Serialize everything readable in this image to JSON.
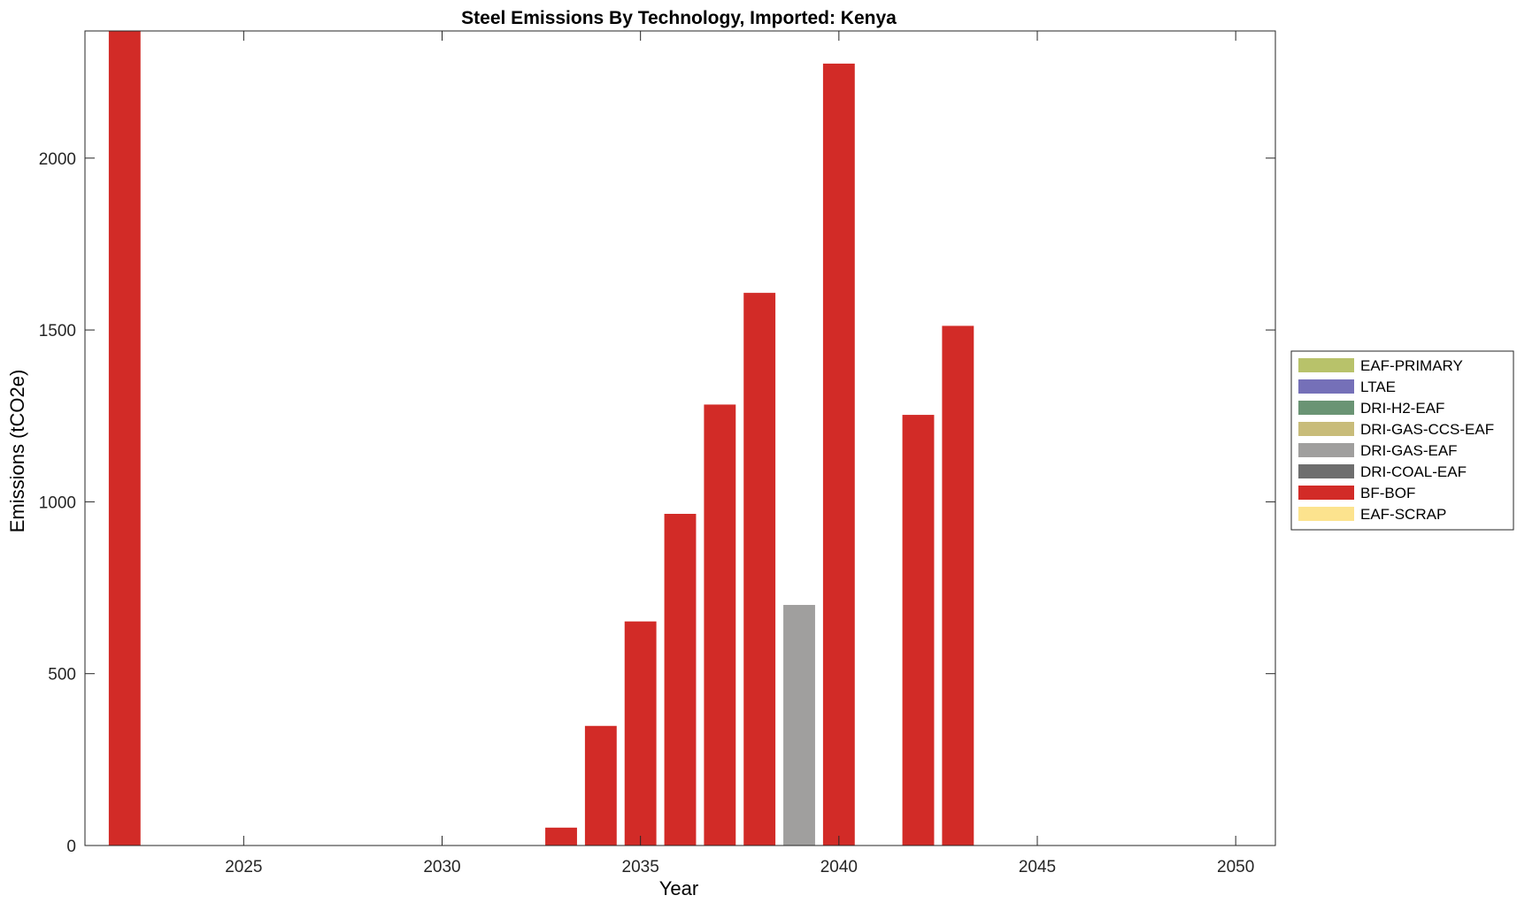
{
  "chart_data": {
    "type": "bar",
    "stacked": true,
    "title": "Steel Emissions By Technology, Imported: Kenya",
    "xlabel": "Year",
    "ylabel": "Emissions (tCO2e)",
    "xlim": [
      2021,
      2051
    ],
    "ylim": [
      0,
      2370
    ],
    "xticks": [
      2025,
      2030,
      2035,
      2040,
      2045,
      2050
    ],
    "yticks": [
      0,
      500,
      1000,
      1500,
      2000
    ],
    "grid": false,
    "legend_position": "right",
    "x": [
      2022,
      2023,
      2024,
      2025,
      2026,
      2027,
      2028,
      2029,
      2030,
      2031,
      2032,
      2033,
      2034,
      2035,
      2036,
      2037,
      2038,
      2039,
      2040,
      2041,
      2042,
      2043,
      2044,
      2045,
      2046,
      2047,
      2048,
      2049,
      2050
    ],
    "series": [
      {
        "name": "EAF-PRIMARY",
        "color": "#b8c26a",
        "values": [
          0,
          0,
          0,
          0,
          0,
          0,
          0,
          0,
          0,
          0,
          0,
          0,
          0,
          0,
          0,
          0,
          0,
          0,
          0,
          0,
          0,
          0,
          0,
          0,
          0,
          0,
          0,
          0,
          0
        ]
      },
      {
        "name": "LTAE",
        "color": "#7570b8",
        "values": [
          0,
          0,
          0,
          0,
          0,
          0,
          0,
          0,
          0,
          0,
          0,
          0,
          0,
          0,
          0,
          0,
          0,
          0,
          0,
          0,
          0,
          0,
          0,
          0,
          0,
          0,
          0,
          0,
          0
        ]
      },
      {
        "name": "DRI-H2-EAF",
        "color": "#6a9474",
        "values": [
          0,
          0,
          0,
          0,
          0,
          0,
          0,
          0,
          0,
          0,
          0,
          0,
          0,
          0,
          0,
          0,
          0,
          0,
          0,
          0,
          0,
          0,
          0,
          0,
          0,
          0,
          0,
          0,
          0
        ]
      },
      {
        "name": "DRI-GAS-CCS-EAF",
        "color": "#c8bc7a",
        "values": [
          0,
          0,
          0,
          0,
          0,
          0,
          0,
          0,
          0,
          0,
          0,
          0,
          0,
          0,
          0,
          0,
          0,
          0,
          0,
          0,
          0,
          0,
          0,
          0,
          0,
          0,
          0,
          0,
          0
        ]
      },
      {
        "name": "DRI-GAS-EAF",
        "color": "#a09f9e",
        "values": [
          0,
          0,
          0,
          0,
          0,
          0,
          0,
          0,
          0,
          0,
          0,
          0,
          0,
          0,
          0,
          0,
          0,
          700,
          0,
          0,
          0,
          0,
          0,
          0,
          0,
          0,
          0,
          0,
          0
        ]
      },
      {
        "name": "DRI-COAL-EAF",
        "color": "#6e6e6e",
        "values": [
          0,
          0,
          0,
          0,
          0,
          0,
          0,
          0,
          0,
          0,
          0,
          0,
          0,
          0,
          0,
          0,
          0,
          0,
          0,
          0,
          0,
          0,
          0,
          0,
          0,
          0,
          0,
          0,
          0
        ]
      },
      {
        "name": "BF-BOF",
        "color": "#d22b27",
        "values": [
          2370,
          0,
          0,
          0,
          0,
          0,
          0,
          0,
          0,
          0,
          0,
          52,
          348,
          652,
          965,
          1283,
          1608,
          0,
          2275,
          0,
          1253,
          1512,
          0,
          0,
          0,
          0,
          0,
          0,
          0
        ]
      },
      {
        "name": "EAF-SCRAP",
        "color": "#fce38e",
        "values": [
          0,
          0,
          0,
          0,
          0,
          0,
          0,
          0,
          0,
          0,
          0,
          0,
          0,
          0,
          0,
          0,
          0,
          0,
          0,
          0,
          0,
          0,
          0,
          0,
          0,
          0,
          0,
          0,
          0
        ]
      }
    ]
  }
}
